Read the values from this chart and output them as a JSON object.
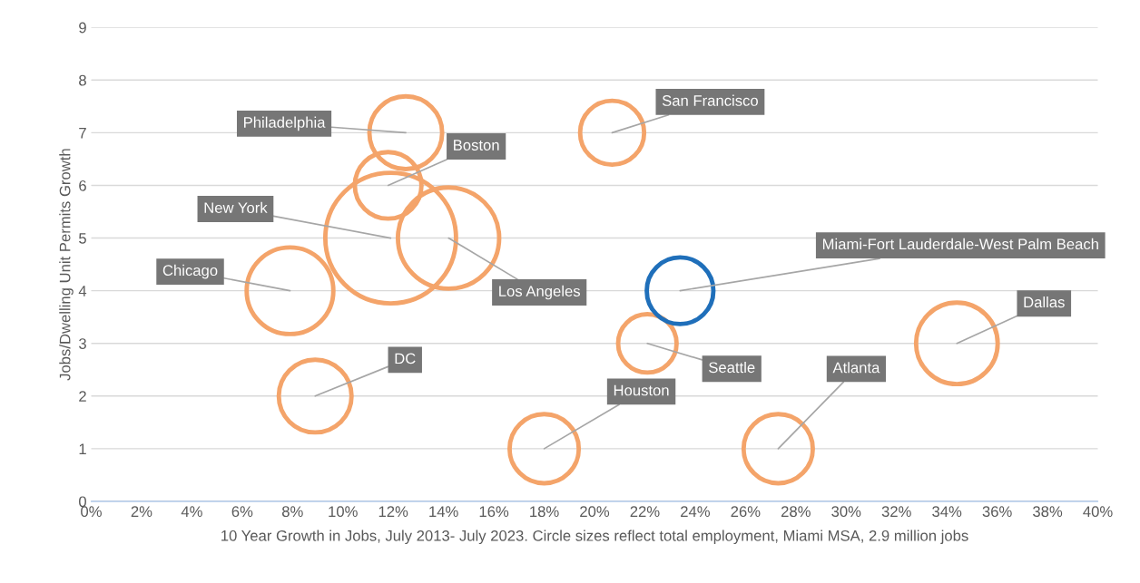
{
  "chart_data": {
    "type": "bubble",
    "xlabel": "10 Year Growth in Jobs, July 2013- July 2023. Circle sizes reflect total employment, Miami MSA, 2.9 million jobs",
    "ylabel": "Jobs/Dwelling Unit Permits Growth",
    "x": [
      12.5,
      11.8,
      11.9,
      14.2,
      7.9,
      8.9,
      18.0,
      20.7,
      22.1,
      23.4,
      27.3,
      34.4
    ],
    "values": [
      7,
      6,
      5,
      5,
      4,
      2,
      1,
      7,
      3,
      4,
      1,
      3
    ],
    "sizes": [
      0.31,
      0.26,
      1,
      0.6,
      0.44,
      0.31,
      0.28,
      0.24,
      0.2,
      0.26,
      0.28,
      0.39
    ],
    "colors": [
      "#f4a46a",
      "#f4a46a",
      "#f4a46a",
      "#f4a46a",
      "#f4a46a",
      "#f4a46a",
      "#f4a46a",
      "#f4a46a",
      "#f4a46a",
      "#1f6fba",
      "#f4a46a",
      "#f4a46a"
    ],
    "annotations": [
      {
        "text": "Philadelphia",
        "x": 12.5,
        "y": 7
      },
      {
        "text": "Boston",
        "x": 11.8,
        "y": 6
      },
      {
        "text": "New York",
        "x": 11.9,
        "y": 5
      },
      {
        "text": "Los Angeles",
        "x": 14.2,
        "y": 5
      },
      {
        "text": "Chicago",
        "x": 7.9,
        "y": 4
      },
      {
        "text": "DC",
        "x": 8.9,
        "y": 2
      },
      {
        "text": "Houston",
        "x": 18.0,
        "y": 1
      },
      {
        "text": "San Francisco",
        "x": 20.7,
        "y": 7
      },
      {
        "text": "Seattle",
        "x": 22.1,
        "y": 3
      },
      {
        "text": "Miami-Fort Lauderdale-West Palm Beach",
        "x": 23.4,
        "y": 4
      },
      {
        "text": "Atlanta",
        "x": 27.3,
        "y": 1
      },
      {
        "text": "Dallas",
        "x": 34.4,
        "y": 3
      }
    ],
    "xlim": [
      0,
      40
    ],
    "xticks": [
      {
        "value": 0,
        "label": "0%"
      },
      {
        "value": 2,
        "label": "2%"
      },
      {
        "value": 4,
        "label": "4%"
      },
      {
        "value": 6,
        "label": "6%"
      },
      {
        "value": 8,
        "label": "8%"
      },
      {
        "value": 10,
        "label": "10%"
      },
      {
        "value": 12,
        "label": "12%"
      },
      {
        "value": 14,
        "label": "14%"
      },
      {
        "value": 16,
        "label": "16%"
      },
      {
        "value": 18,
        "label": "18%"
      },
      {
        "value": 20,
        "label": "20%"
      },
      {
        "value": 22,
        "label": "22%"
      },
      {
        "value": 24,
        "label": "24%"
      },
      {
        "value": 26,
        "label": "26%"
      },
      {
        "value": 28,
        "label": "28%"
      },
      {
        "value": 30,
        "label": "30%"
      },
      {
        "value": 32,
        "label": "32%"
      },
      {
        "value": 34,
        "label": "34%"
      },
      {
        "value": 36,
        "label": "36%"
      },
      {
        "value": 38,
        "label": "38%"
      },
      {
        "value": 40,
        "label": "40%"
      }
    ],
    "ylim": [
      0,
      9
    ],
    "yticks": [
      0,
      1,
      2,
      3,
      4,
      5,
      6,
      7,
      8,
      9
    ],
    "grid": "y",
    "legend": false
  }
}
